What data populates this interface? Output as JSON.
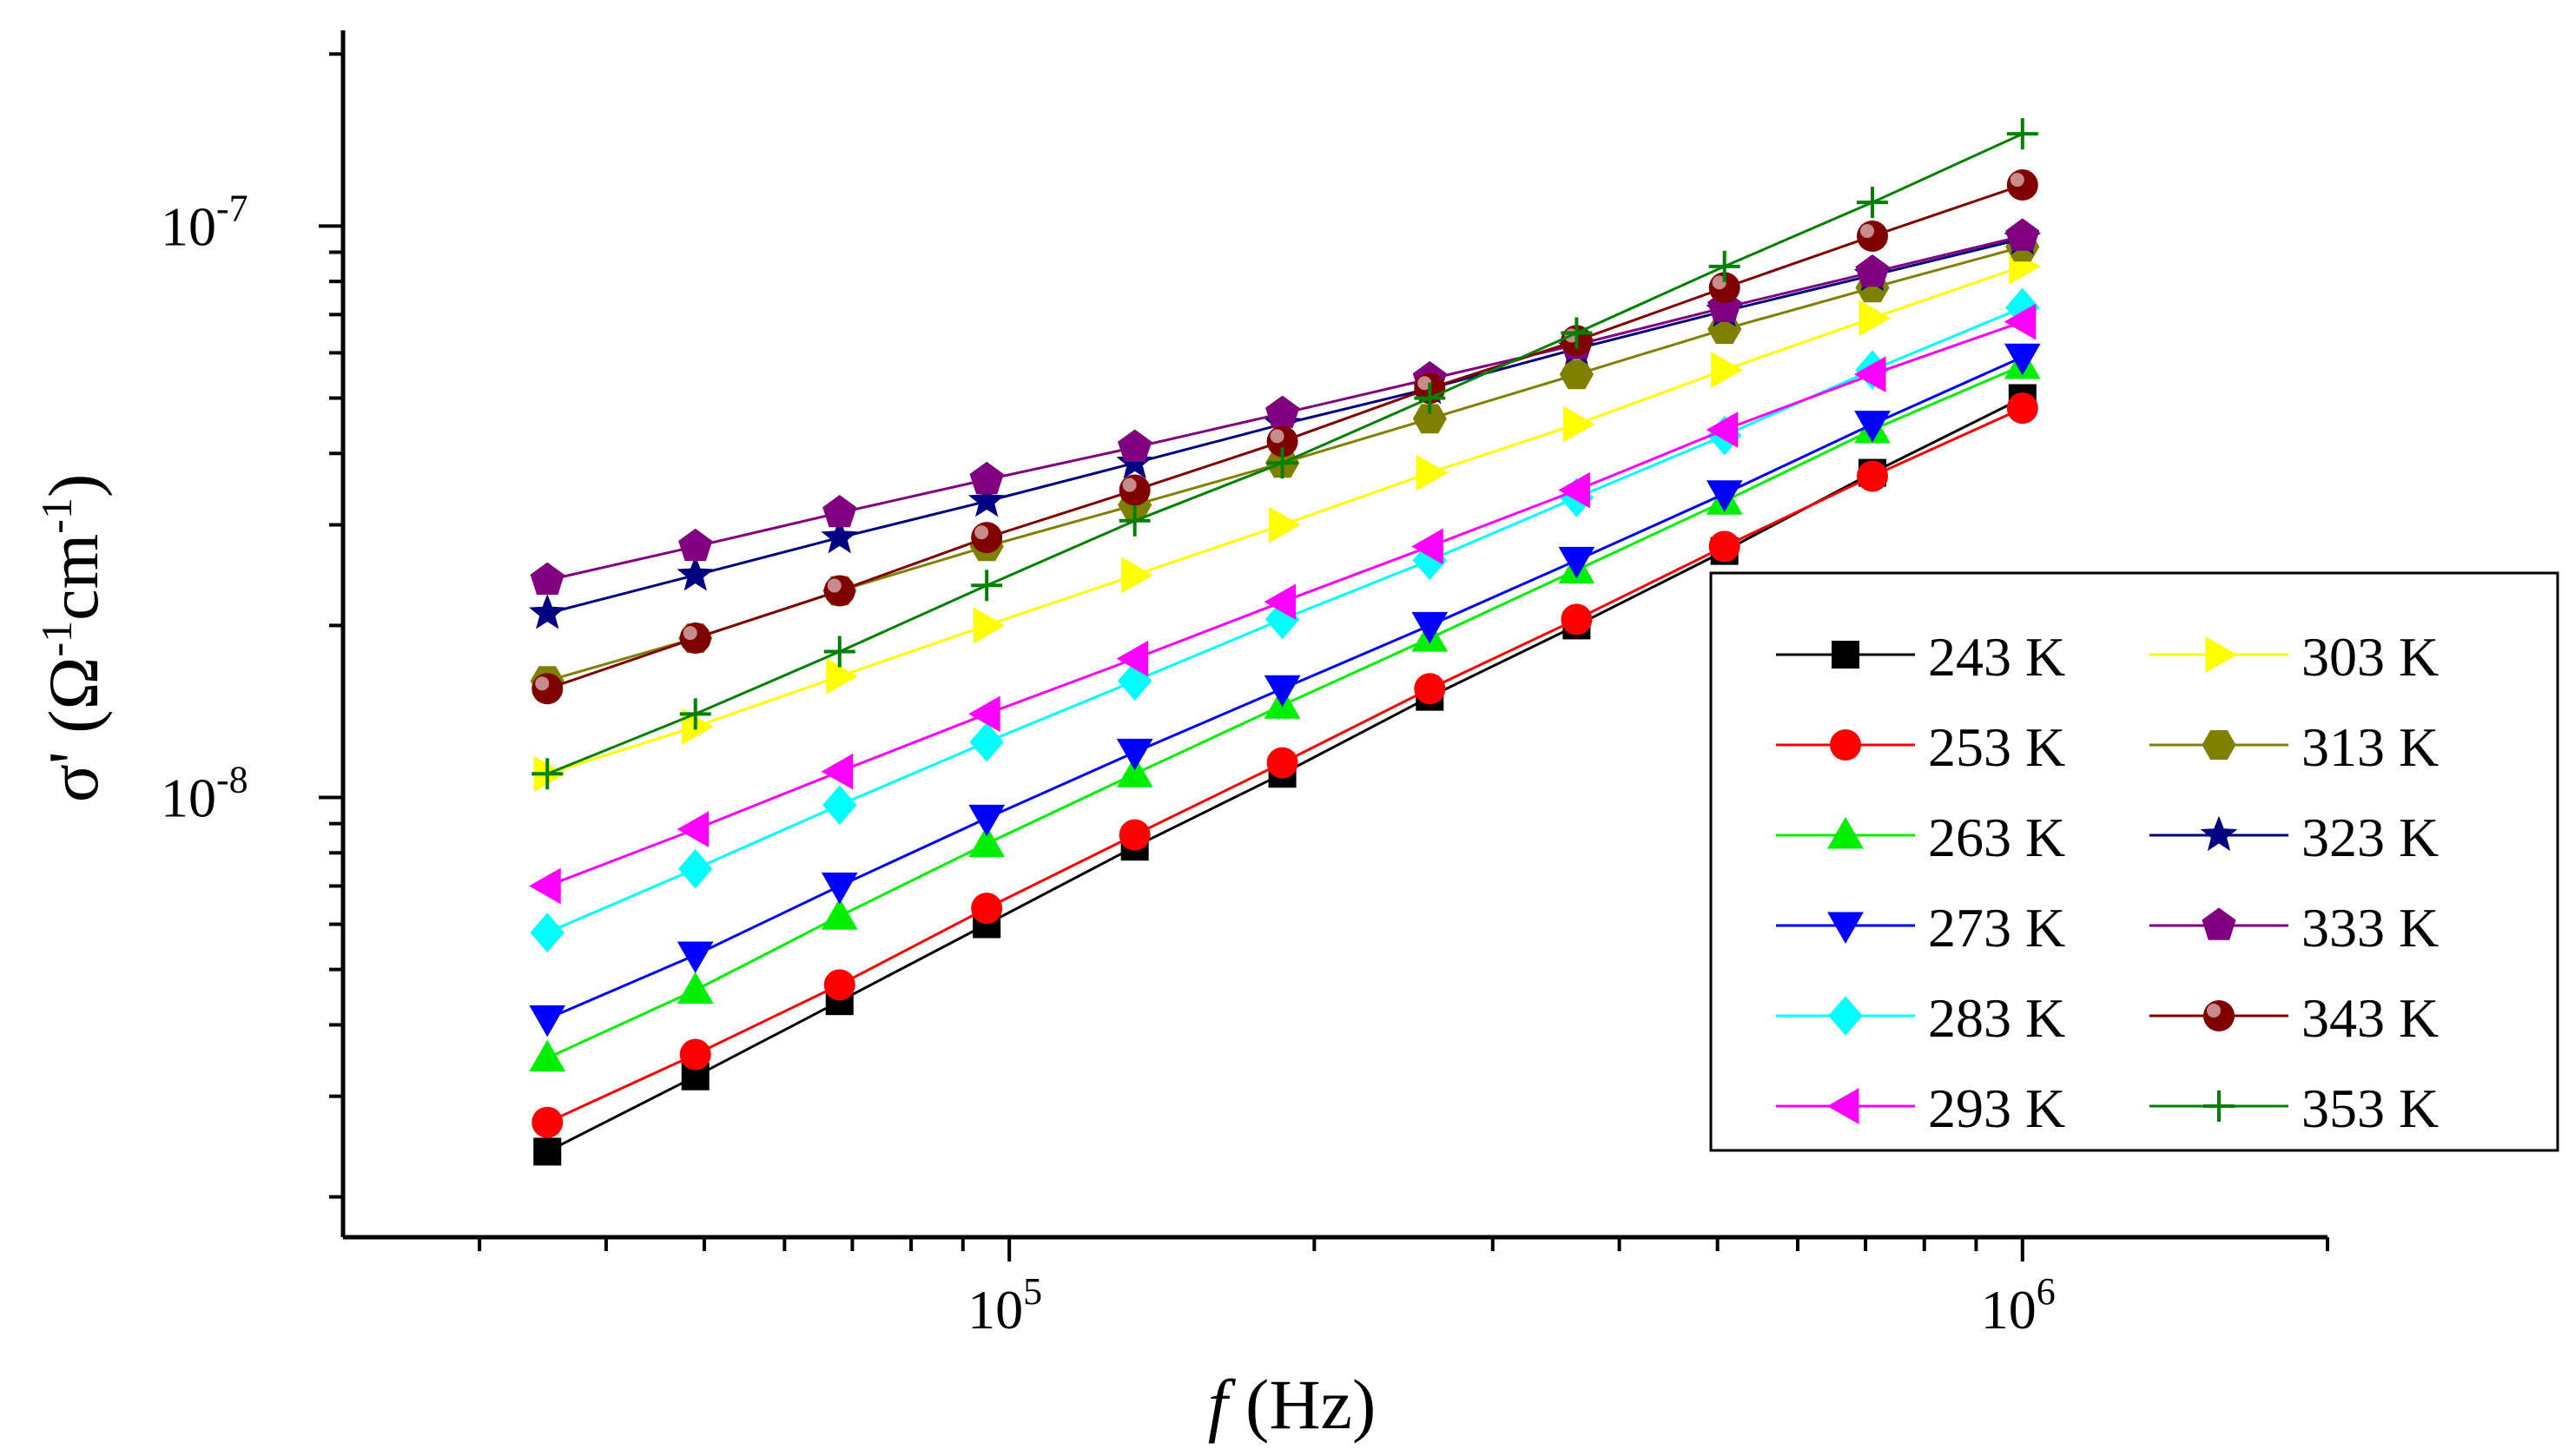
{
  "chart_data": {
    "type": "line",
    "title": "",
    "x_scale": "log",
    "y_scale": "log",
    "xlim": [
      22000,
      2000000
    ],
    "ylim": [
      1.7e-09,
      2.2e-07
    ],
    "xlabel": {
      "italic": "f",
      "rest": " (Hz)"
    },
    "ylabel": {
      "sym": "σ'",
      "open": " (",
      "ohm": "Ω",
      "inv1": "-1",
      "cm": "cm",
      "inv2": "-1",
      "close": ")"
    },
    "x_major_ticks": [
      {
        "value": 100000,
        "base": "10",
        "exp": "5"
      },
      {
        "value": 1000000,
        "base": "10",
        "exp": "6"
      }
    ],
    "y_major_ticks": [
      {
        "value": 1e-08,
        "base": "10",
        "exp": "-8"
      },
      {
        "value": 1e-07,
        "base": "10",
        "exp": "-7"
      }
    ],
    "x": [
      35000,
      49000,
      68000,
      95000,
      133000,
      186000,
      260000,
      363000,
      508000,
      711000,
      1000000
    ],
    "legend_position": "bottom-right",
    "series": [
      {
        "name": "243 K",
        "color": "#000000",
        "marker": "square",
        "values": [
          2.4e-09,
          3.25e-09,
          4.4e-09,
          6e-09,
          8.2e-09,
          1.1e-08,
          1.5e-08,
          2e-08,
          2.7e-08,
          3.7e-08,
          5e-08
        ]
      },
      {
        "name": "253 K",
        "color": "#ff0000",
        "marker": "circle",
        "values": [
          2.7e-09,
          3.55e-09,
          4.7e-09,
          6.4e-09,
          8.6e-09,
          1.15e-08,
          1.55e-08,
          2.05e-08,
          2.75e-08,
          3.65e-08,
          4.8e-08
        ]
      },
      {
        "name": "263 K",
        "color": "#00ee00",
        "marker": "triangle-up",
        "values": [
          3.5e-09,
          4.6e-09,
          6.2e-09,
          8.3e-09,
          1.1e-08,
          1.45e-08,
          1.9e-08,
          2.5e-08,
          3.3e-08,
          4.4e-08,
          5.7e-08
        ]
      },
      {
        "name": "273 K",
        "color": "#0000ff",
        "marker": "triangle-down",
        "values": [
          4.1e-09,
          5.3e-09,
          7e-09,
          9.2e-09,
          1.2e-08,
          1.55e-08,
          2e-08,
          2.6e-08,
          3.4e-08,
          4.5e-08,
          5.9e-08
        ]
      },
      {
        "name": "283 K",
        "color": "#00ffff",
        "marker": "diamond",
        "values": [
          5.8e-09,
          7.5e-09,
          9.7e-09,
          1.25e-08,
          1.6e-08,
          2.05e-08,
          2.6e-08,
          3.35e-08,
          4.3e-08,
          5.6e-08,
          7.2e-08
        ]
      },
      {
        "name": "293 K",
        "color": "#ff00ff",
        "marker": "triangle-left",
        "values": [
          7e-09,
          8.8e-09,
          1.11e-08,
          1.4e-08,
          1.75e-08,
          2.2e-08,
          2.75e-08,
          3.45e-08,
          4.4e-08,
          5.5e-08,
          6.8e-08
        ]
      },
      {
        "name": "303 K",
        "color": "#ffff00",
        "marker": "triangle-right",
        "values": [
          1.1e-08,
          1.33e-08,
          1.63e-08,
          2e-08,
          2.45e-08,
          3e-08,
          3.7e-08,
          4.5e-08,
          5.6e-08,
          6.9e-08,
          8.5e-08
        ]
      },
      {
        "name": "313 K",
        "color": "#808000",
        "marker": "hexagon",
        "values": [
          1.6e-08,
          1.9e-08,
          2.3e-08,
          2.75e-08,
          3.25e-08,
          3.85e-08,
          4.6e-08,
          5.5e-08,
          6.6e-08,
          7.8e-08,
          9.2e-08
        ]
      },
      {
        "name": "323 K",
        "color": "#000080",
        "marker": "star",
        "values": [
          2.1e-08,
          2.45e-08,
          2.85e-08,
          3.3e-08,
          3.85e-08,
          4.5e-08,
          5.2e-08,
          6.1e-08,
          7.1e-08,
          8.2e-08,
          9.5e-08
        ]
      },
      {
        "name": "333 K",
        "color": "#800080",
        "marker": "pentagon",
        "values": [
          2.4e-08,
          2.75e-08,
          3.15e-08,
          3.6e-08,
          4.1e-08,
          4.7e-08,
          5.4e-08,
          6.2e-08,
          7.2e-08,
          8.3e-08,
          9.6e-08
        ]
      },
      {
        "name": "343 K",
        "color": "#800000",
        "marker": "sphere",
        "values": [
          1.55e-08,
          1.9e-08,
          2.3e-08,
          2.85e-08,
          3.45e-08,
          4.2e-08,
          5.2e-08,
          6.3e-08,
          7.8e-08,
          9.6e-08,
          1.18e-07
        ]
      },
      {
        "name": "353 K",
        "color": "#008000",
        "marker": "plus",
        "values": [
          1.1e-08,
          1.4e-08,
          1.8e-08,
          2.35e-08,
          3.05e-08,
          3.85e-08,
          5e-08,
          6.5e-08,
          8.5e-08,
          1.1e-07,
          1.45e-07
        ]
      }
    ]
  }
}
